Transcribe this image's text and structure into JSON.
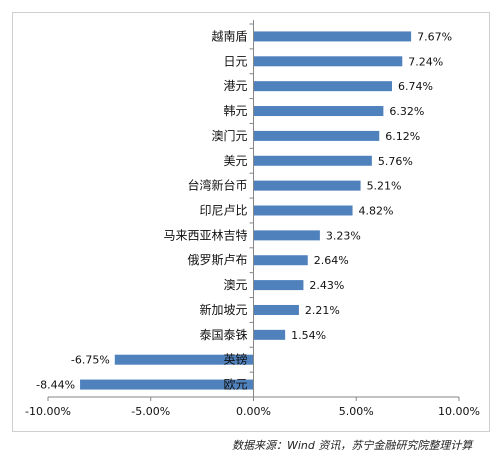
{
  "chart_data": {
    "type": "bar",
    "orientation": "horizontal",
    "categories": [
      "越南盾",
      "日元",
      "港元",
      "韩元",
      "澳门元",
      "美元",
      "台湾新台币",
      "印尼卢比",
      "马来西亚林吉特",
      "俄罗斯卢布",
      "澳元",
      "新加坡元",
      "泰国泰铢",
      "英镑",
      "欧元"
    ],
    "values": [
      7.67,
      7.24,
      6.74,
      6.32,
      6.12,
      5.76,
      5.21,
      4.82,
      3.23,
      2.64,
      2.43,
      2.21,
      1.54,
      -6.75,
      -8.44
    ],
    "value_labels": [
      "7.67%",
      "7.24%",
      "6.74%",
      "6.32%",
      "6.12%",
      "5.76%",
      "5.21%",
      "4.82%",
      "3.23%",
      "2.64%",
      "2.43%",
      "2.21%",
      "1.54%",
      "-6.75%",
      "-8.44%"
    ],
    "xlim": [
      -10,
      10
    ],
    "xticks": [
      -10,
      -5,
      0,
      5,
      10
    ],
    "xtick_labels": [
      "-10.00%",
      "-5.00%",
      "0.00%",
      "5.00%",
      "10.00%"
    ],
    "bar_color": "#4f81bd",
    "grid": false,
    "legend": "none"
  },
  "source_note": "数据来源：Wind 资讯，苏宁金融研究院整理计算"
}
